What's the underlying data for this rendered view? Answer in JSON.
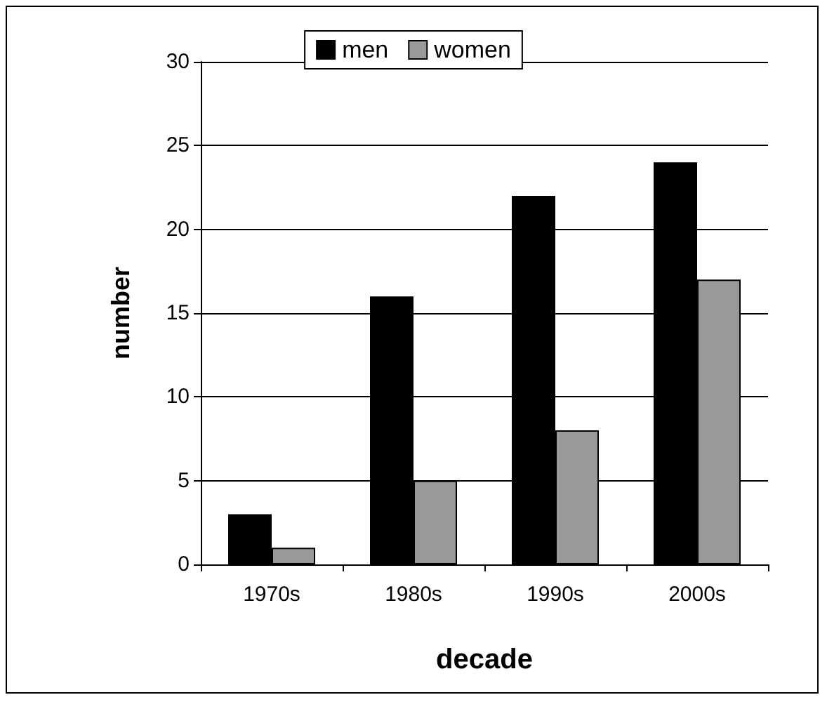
{
  "chart_data": {
    "type": "bar",
    "xlabel": "decade",
    "ylabel": "number",
    "categories": [
      "1970s",
      "1980s",
      "1990s",
      "2000s"
    ],
    "series": [
      {
        "name": "men",
        "color": "#000000",
        "values": [
          3,
          16,
          22,
          24
        ]
      },
      {
        "name": "women",
        "color": "#999999",
        "values": [
          1,
          5,
          8,
          17
        ]
      }
    ],
    "ylim": [
      0,
      30
    ],
    "yticks": [
      0,
      5,
      10,
      15,
      20,
      25,
      30
    ],
    "grid": "y",
    "legend": "top"
  }
}
